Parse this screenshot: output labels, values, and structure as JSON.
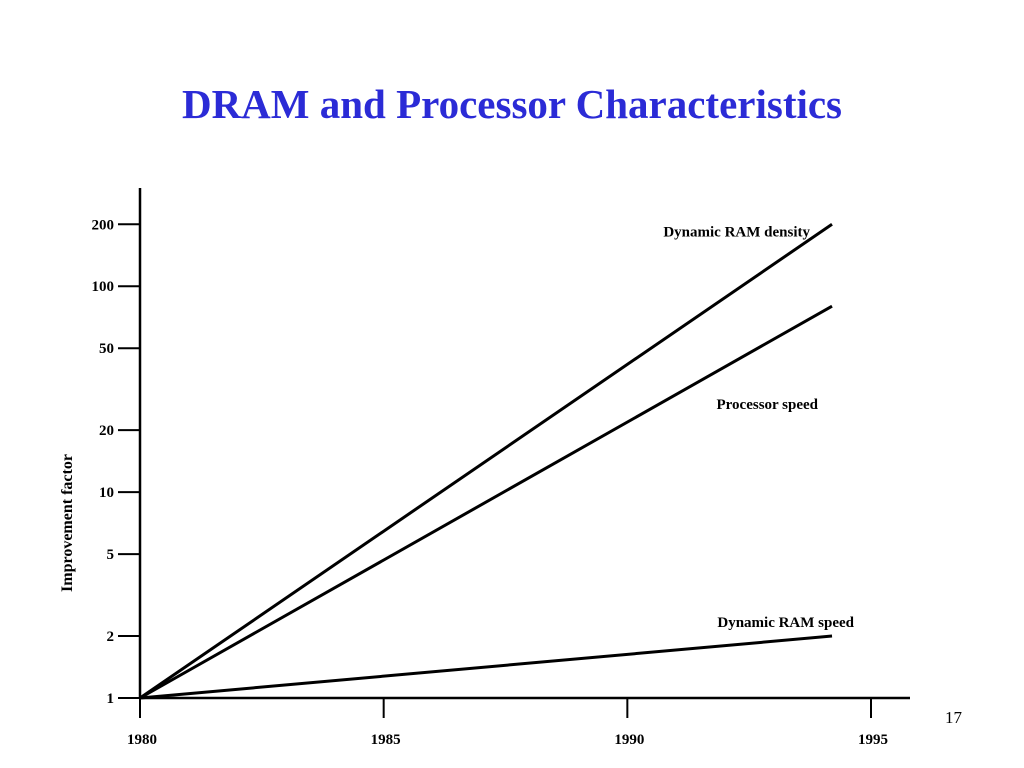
{
  "slide": {
    "title": "DRAM and Processor Characteristics",
    "page_number": "17"
  },
  "chart_data": {
    "type": "line",
    "title": "",
    "xlabel": "",
    "ylabel": "Improvement factor",
    "x_scale": "linear",
    "y_scale": "log",
    "xlim": [
      1980,
      1995.8
    ],
    "ylim": [
      1,
      300
    ],
    "x_ticks": [
      1980,
      1985,
      1990,
      1995
    ],
    "y_ticks": [
      1,
      2,
      5,
      10,
      20,
      50,
      100,
      200
    ],
    "grid": false,
    "legend": "inline labels",
    "series": [
      {
        "name": "Dynamic RAM density",
        "x": [
          1980,
          1994.2
        ],
        "y": [
          1,
          200
        ]
      },
      {
        "name": "Processor speed",
        "x": [
          1980,
          1994.2
        ],
        "y": [
          1,
          80
        ]
      },
      {
        "name": "Dynamic RAM speed",
        "x": [
          1980,
          1994.2
        ],
        "y": [
          1,
          2
        ]
      }
    ]
  }
}
